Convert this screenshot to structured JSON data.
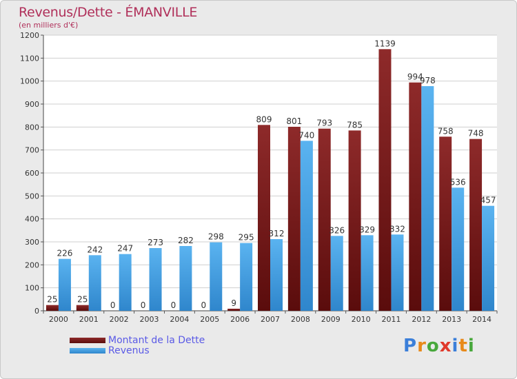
{
  "header": {
    "title": "Revenus/Dette - ÉMANVILLE",
    "subtitle": "(en milliers d'€)"
  },
  "logo": {
    "letters": [
      "P",
      "r",
      "o",
      "x",
      "i",
      "t",
      "i"
    ],
    "colors": [
      "#3b7fd9",
      "#e88a1a",
      "#48a83c",
      "#e0392b",
      "#3b7fd9",
      "#e88a1a",
      "#48a83c"
    ]
  },
  "chart_data": {
    "type": "bar",
    "categories": [
      "2000",
      "2001",
      "2002",
      "2003",
      "2004",
      "2005",
      "2006",
      "2007",
      "2008",
      "2009",
      "2010",
      "2011",
      "2012",
      "2013",
      "2014"
    ],
    "series": [
      {
        "name": "Montant de la Dette",
        "color": "#7a1c1c",
        "values": [
          25,
          25,
          0,
          0,
          0,
          0,
          9,
          809,
          801,
          793,
          785,
          1139,
          994,
          758,
          748
        ]
      },
      {
        "name": "Revenus",
        "color": "#4aa3e8",
        "values": [
          226,
          242,
          247,
          273,
          282,
          298,
          295,
          312,
          740,
          326,
          329,
          332,
          978,
          536,
          457
        ]
      }
    ],
    "ylim": [
      0,
      1200
    ],
    "yticks": [
      0,
      100,
      200,
      300,
      400,
      500,
      600,
      700,
      800,
      900,
      1000,
      1100,
      1200
    ],
    "grid": true,
    "legend": "bottom-left"
  }
}
